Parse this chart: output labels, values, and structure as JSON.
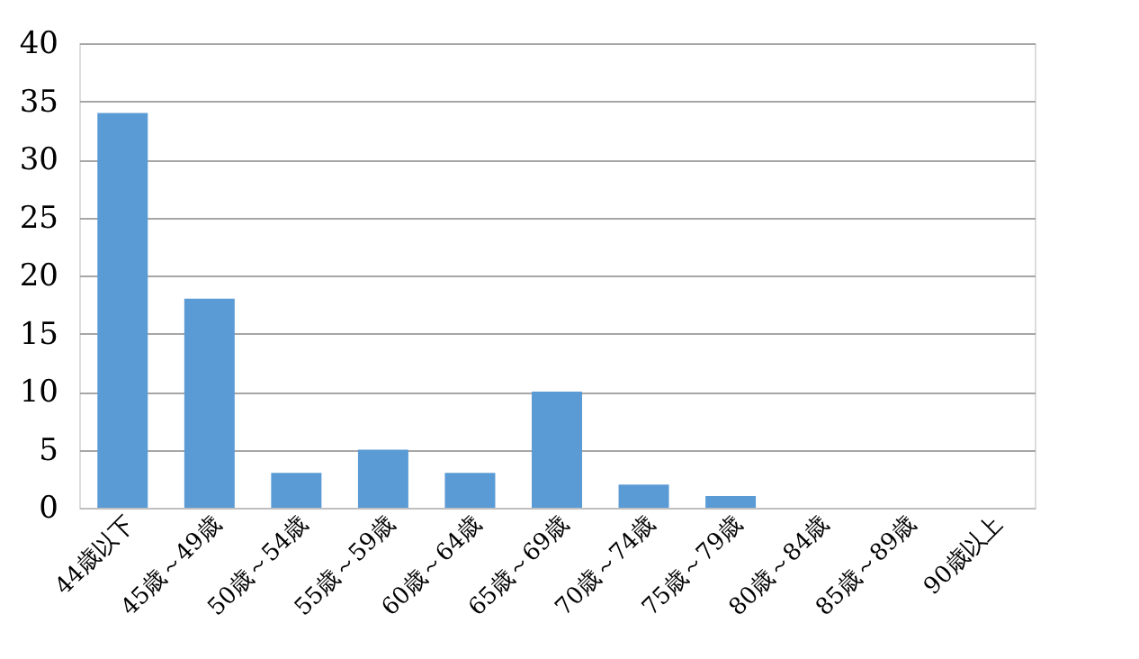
{
  "chart_data": {
    "type": "bar",
    "categories": [
      "44歳以下",
      "45歳～49歳",
      "50歳～54歳",
      "55歳～59歳",
      "60歳～64歳",
      "65歳～69歳",
      "70歳～74歳",
      "75歳～79歳",
      "80歳～84歳",
      "85歳～89歳",
      "90歳以上"
    ],
    "values": [
      34,
      18,
      3,
      5,
      3,
      10,
      2,
      1,
      0,
      0,
      0
    ],
    "color": "#5b9bd5",
    "ylim": [
      0,
      40
    ],
    "yticks": [
      0,
      5,
      10,
      15,
      20,
      25,
      30,
      35,
      40
    ],
    "grid": "y"
  }
}
